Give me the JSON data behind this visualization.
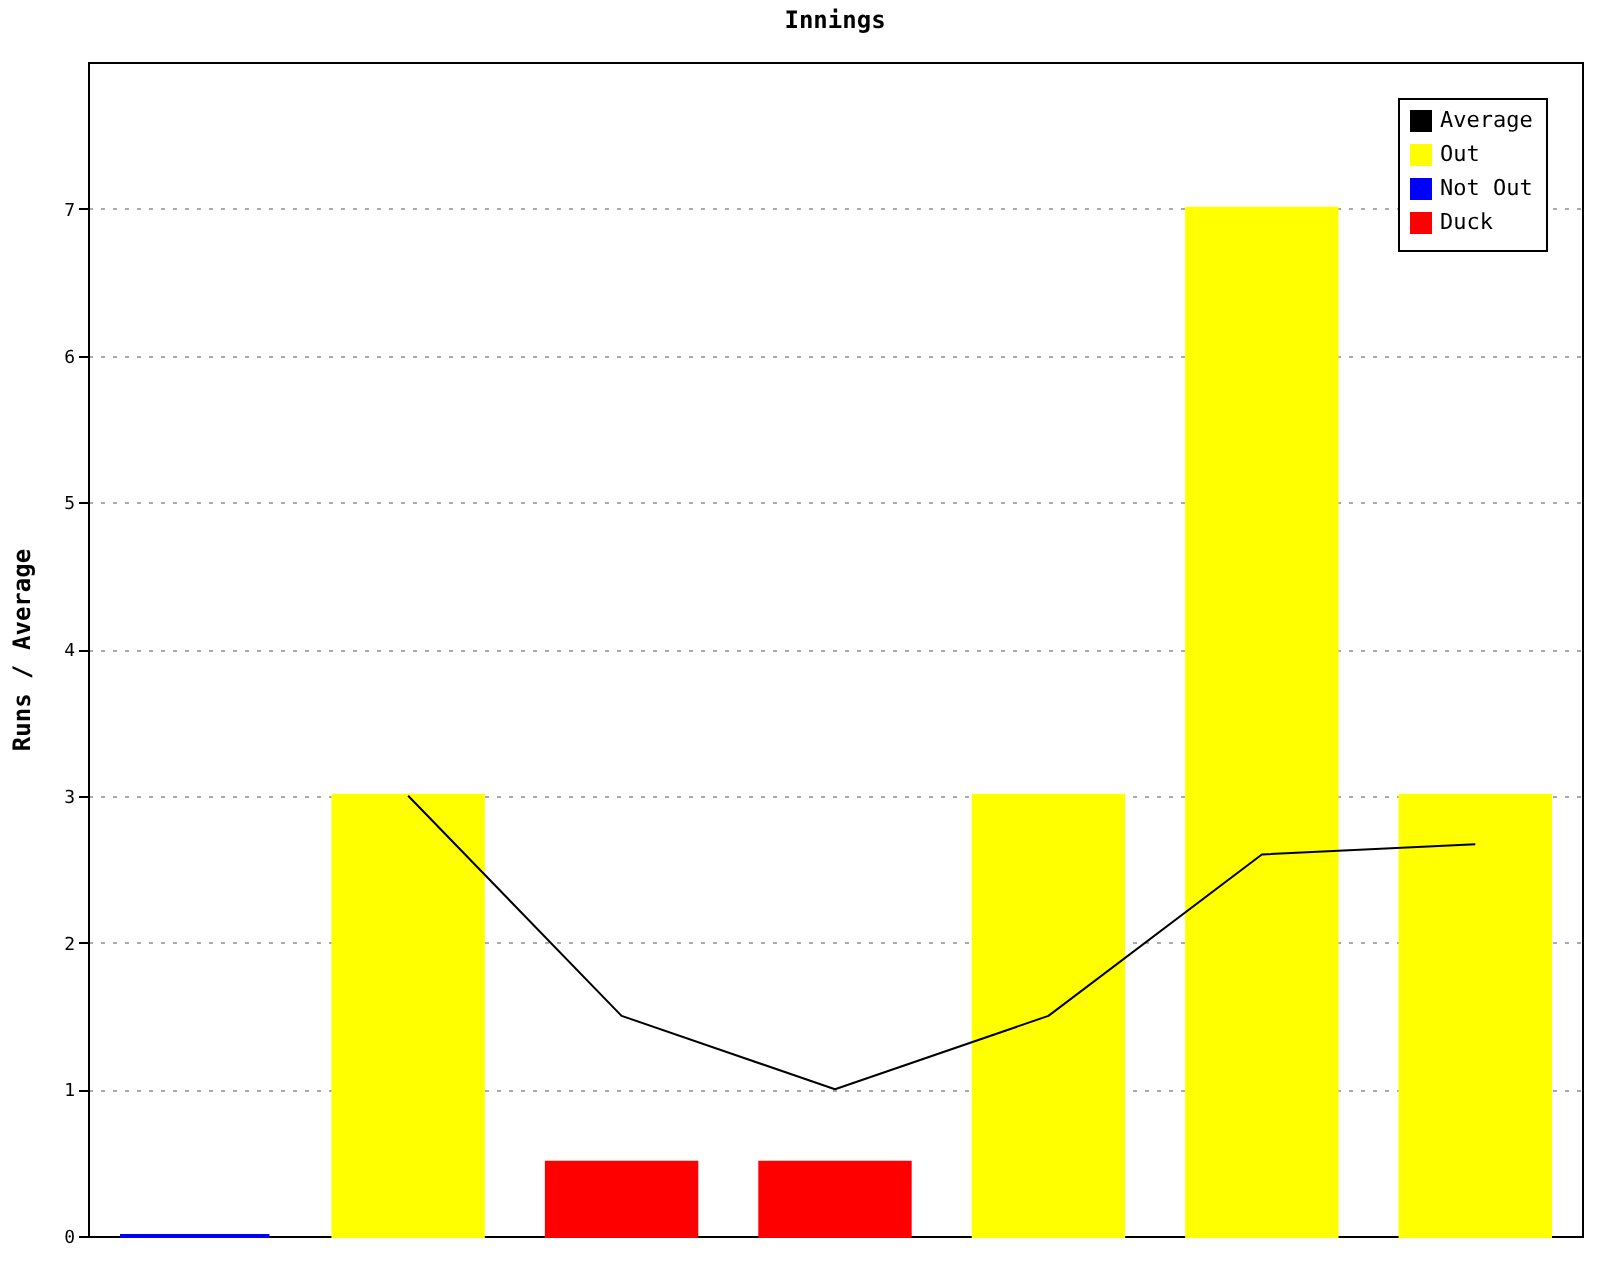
{
  "chart_data": {
    "type": "bar",
    "title": "Innings",
    "ylabel": "Runs / Average",
    "categories": [
      null,
      null,
      null,
      null,
      null,
      null,
      null
    ],
    "series": [
      {
        "name": "Average",
        "type": "line",
        "color": "#000000",
        "values": [
          null,
          3,
          1.5,
          1,
          1.5,
          2.6,
          2.67
        ]
      },
      {
        "name": "Out",
        "color": "#ffff00",
        "values": [
          null,
          3,
          null,
          null,
          3,
          7,
          3
        ]
      },
      {
        "name": "Not Out",
        "color": "#0000ff",
        "values": [
          0,
          null,
          null,
          null,
          null,
          null,
          null
        ]
      },
      {
        "name": "Duck",
        "color": "#ff0000",
        "values": [
          null,
          null,
          0.5,
          0.5,
          null,
          null,
          null
        ]
      }
    ],
    "ylim": [
      0,
      8
    ],
    "yticks": [
      0,
      1,
      2,
      3,
      4,
      5,
      6,
      7
    ],
    "grid": "y",
    "legend": "top right",
    "tick_labels": "y"
  }
}
